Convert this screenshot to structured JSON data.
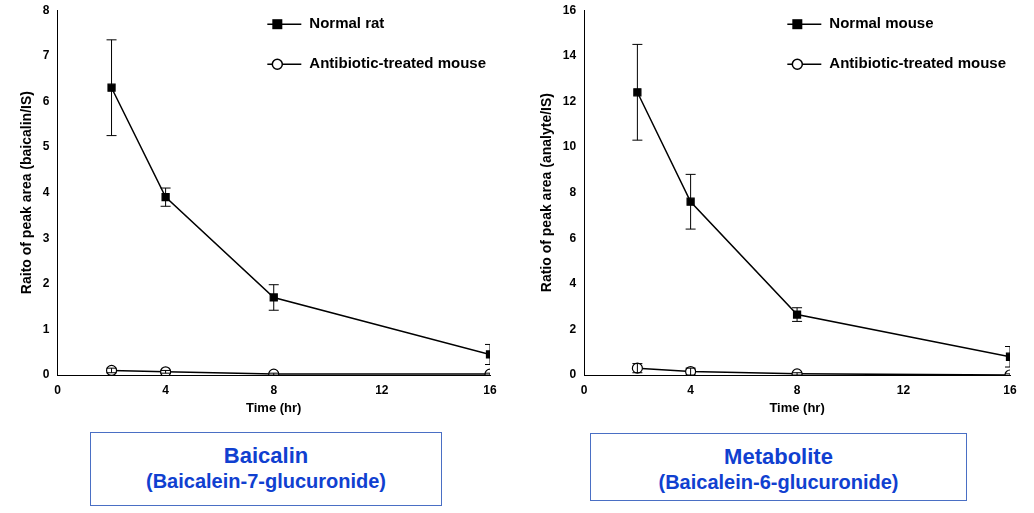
{
  "chart_data": [
    {
      "type": "line",
      "title": "Baicalin",
      "subtitle": "(Baicalein-7-glucuronide)",
      "x_label": "Time (hr)",
      "y_label": "Raito of peak area (baicalin/IS)",
      "x": [
        2,
        4,
        8,
        16
      ],
      "series": [
        {
          "name": "Normal rat",
          "color": "#000000",
          "marker": "square",
          "line_style": "solid",
          "values": [
            6.3,
            3.9,
            1.7,
            0.45
          ],
          "errors": [
            1.05,
            0.2,
            0.28,
            0.22
          ]
        },
        {
          "name": "Antibiotic-treated mouse",
          "color": "#000000",
          "marker": "open_circle",
          "line_style": "solid",
          "values": [
            0.1,
            0.07,
            0.02,
            0.02
          ],
          "errors": [
            0.05,
            0.03,
            0.02,
            0.02
          ]
        }
      ],
      "xlim": [
        0,
        16
      ],
      "xticks": [
        0,
        4,
        8,
        12,
        16
      ],
      "ylim": [
        0,
        8
      ],
      "yticks": [
        0,
        1,
        2,
        3,
        4,
        5,
        6,
        7,
        8
      ],
      "grid": false,
      "legend": "upper right"
    },
    {
      "type": "line",
      "title": "Metabolite",
      "subtitle": "(Baicalein-6-glucuronide)",
      "x_label": "Time (hr)",
      "y_label": "Ratio of peak area (analyte/IS)",
      "x": [
        2,
        4,
        8,
        16
      ],
      "series": [
        {
          "name": "Normal mouse",
          "color": "#000000",
          "marker": "square",
          "line_style": "solid",
          "values": [
            12.4,
            7.6,
            2.65,
            0.8
          ],
          "errors": [
            2.1,
            1.2,
            0.3,
            0.45
          ]
        },
        {
          "name": "Antibiotic-treated mouse",
          "color": "#000000",
          "marker": "open_circle",
          "line_style": "solid",
          "values": [
            0.3,
            0.15,
            0.05,
            0.0
          ],
          "errors": [
            0.2,
            0.15,
            0.05,
            0.05
          ]
        }
      ],
      "xlim": [
        0,
        16
      ],
      "xticks": [
        0,
        4,
        8,
        12,
        16
      ],
      "ylim": [
        0,
        16
      ],
      "yticks": [
        0,
        2,
        4,
        6,
        8,
        10,
        12,
        14,
        16
      ],
      "grid": false,
      "legend": "upper right"
    }
  ]
}
